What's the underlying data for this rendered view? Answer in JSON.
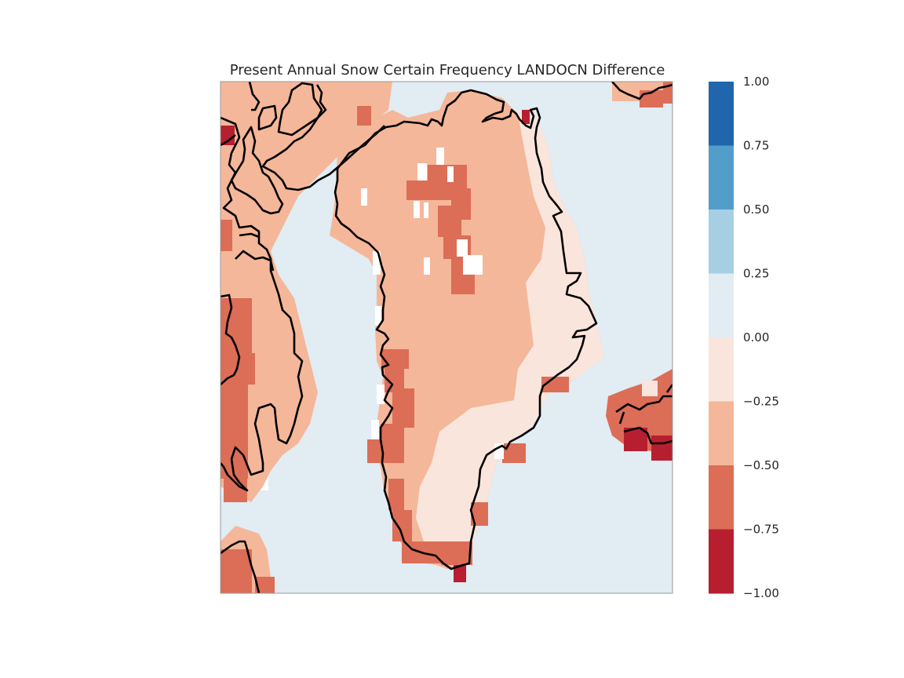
{
  "title": "Present Annual Snow Certain Frequency LANDOCN Difference",
  "colorbar": {
    "ticks": [
      "1.00",
      "0.75",
      "0.50",
      "0.25",
      "0.00",
      "−0.25",
      "−0.50",
      "−0.75",
      "−1.00"
    ],
    "bins": [
      {
        "from": 0.75,
        "to": 1.0,
        "color": "#2166ac"
      },
      {
        "from": 0.5,
        "to": 0.75,
        "color": "#539dcb"
      },
      {
        "from": 0.25,
        "to": 0.5,
        "color": "#a6cfe4"
      },
      {
        "from": 0.0,
        "to": 0.25,
        "color": "#e1ecf3"
      },
      {
        "from": -0.25,
        "to": 0.0,
        "color": "#f9e5dc"
      },
      {
        "from": -0.5,
        "to": -0.25,
        "color": "#f5b799"
      },
      {
        "from": -0.75,
        "to": -0.5,
        "color": "#dc6d57"
      },
      {
        "from": -1.0,
        "to": -0.75,
        "color": "#b71f2f"
      }
    ]
  },
  "map": {
    "background_color": "#e1ecf3",
    "coastline_color": "#000000",
    "region": "Greenland"
  }
}
